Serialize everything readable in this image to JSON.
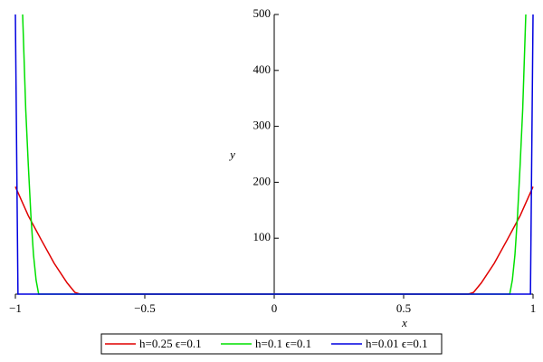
{
  "chart_data": {
    "type": "line",
    "xlabel": "x",
    "ylabel": "y",
    "xlim": [
      -1,
      1
    ],
    "ylim": [
      0,
      500
    ],
    "xticks": [
      {
        "value": -1,
        "label": "−1"
      },
      {
        "value": -0.5,
        "label": "−0.5"
      },
      0,
      0.5,
      1
    ],
    "yticks": [
      100,
      200,
      300,
      400,
      500
    ],
    "legend": "bottom",
    "series": [
      {
        "name": "h=0.25 ϵ=0.1",
        "color": "#e00000",
        "x": [
          -1,
          -0.95,
          -0.9,
          -0.85,
          -0.8,
          -0.77,
          -0.75,
          0.75,
          0.77,
          0.8,
          0.85,
          0.9,
          0.95,
          1
        ],
        "values": [
          192,
          140,
          97,
          55,
          20,
          3,
          0,
          0,
          3,
          20,
          55,
          97,
          140,
          192
        ]
      },
      {
        "name": "h=0.1 ϵ=0.1",
        "color": "#00e000",
        "x": [
          -0.972,
          -0.96,
          -0.95,
          -0.94,
          -0.93,
          -0.92,
          -0.91,
          0.91,
          0.92,
          0.93,
          0.94,
          0.95,
          0.96,
          0.972
        ],
        "values": [
          500,
          330,
          230,
          140,
          70,
          25,
          0,
          0,
          25,
          70,
          140,
          230,
          330,
          500
        ]
      },
      {
        "name": "h=0.01 ϵ=0.1",
        "color": "#0000e0",
        "x": [
          -1,
          -0.99,
          0.99,
          1
        ],
        "values": [
          500,
          0,
          0,
          500
        ]
      }
    ]
  }
}
